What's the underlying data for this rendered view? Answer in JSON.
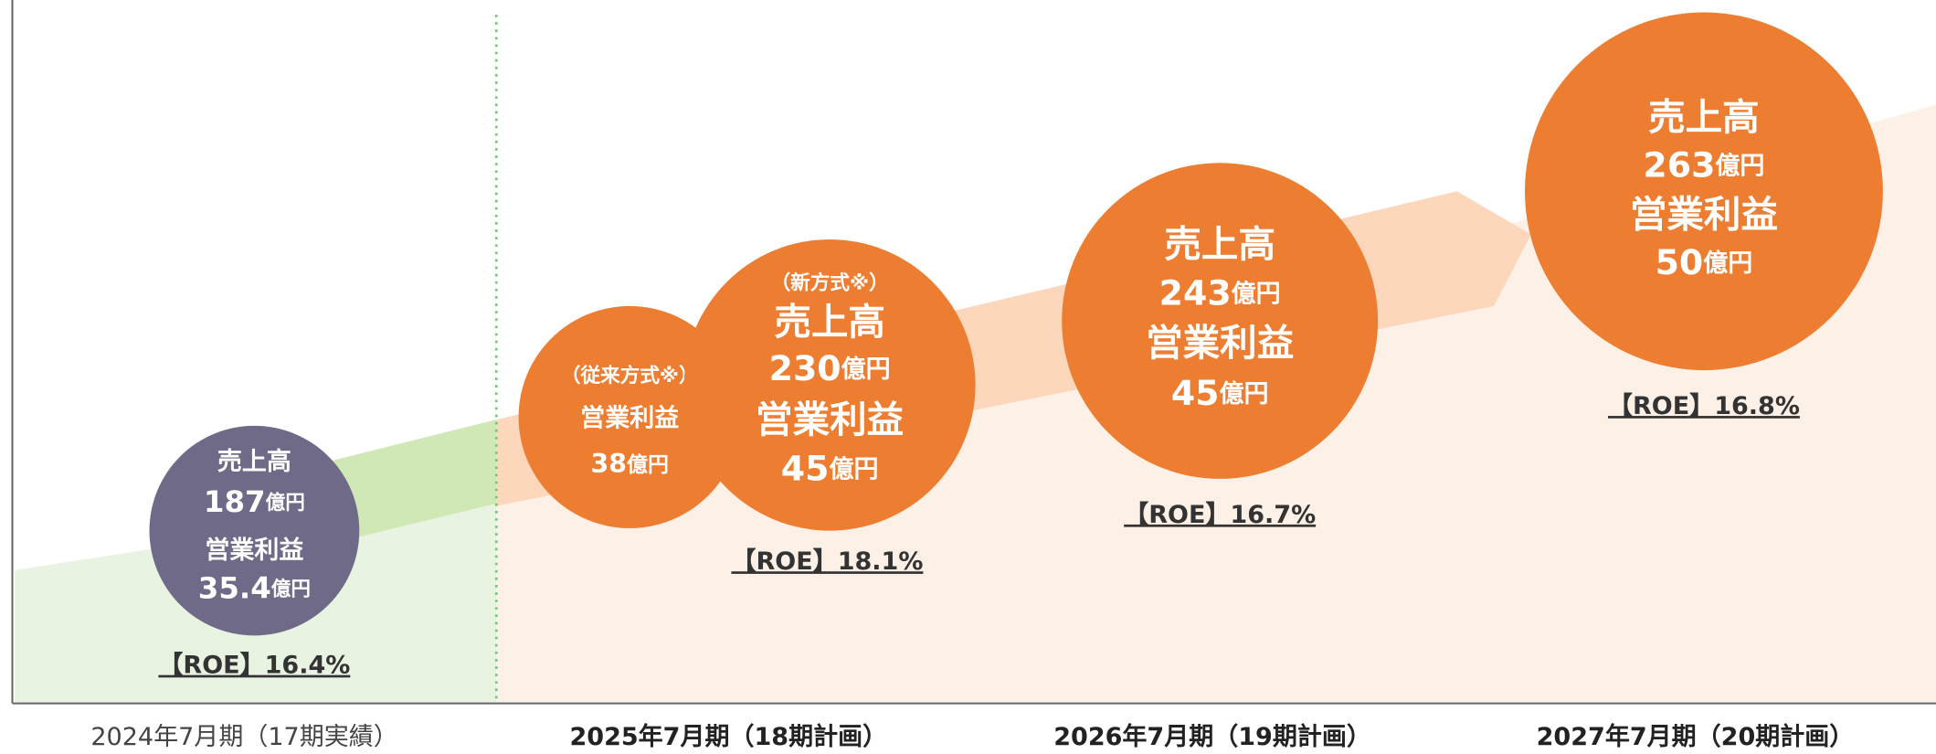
{
  "periods": [
    {
      "label": "2024年7月期（17期実績）",
      "roe": "【ROE】16.4%",
      "circles": [
        {
          "items": [
            {
              "heading": "売上高",
              "value": "187",
              "unit": "億円"
            },
            {
              "heading": "営業利益",
              "value": "35.4",
              "unit": "億円"
            }
          ]
        }
      ]
    },
    {
      "label": "2025年7月期（18期計画）",
      "roe": "【ROE】18.1%",
      "circles": [
        {
          "note": "（従来方式※）",
          "items": [
            {
              "heading": "営業利益",
              "value": "38",
              "unit": "億円"
            }
          ]
        },
        {
          "note": "（新方式※）",
          "items": [
            {
              "heading": "売上高",
              "value": "230",
              "unit": "億円"
            },
            {
              "heading": "営業利益",
              "value": "45",
              "unit": "億円"
            }
          ]
        }
      ]
    },
    {
      "label": "2026年7月期（19期計画）",
      "roe": "【ROE】16.7%",
      "circles": [
        {
          "items": [
            {
              "heading": "売上高",
              "value": "243",
              "unit": "億円"
            },
            {
              "heading": "営業利益",
              "value": "45",
              "unit": "億円"
            }
          ]
        }
      ]
    },
    {
      "label": "2027年7月期（20期計画）",
      "roe": "【ROE】16.8%",
      "circles": [
        {
          "items": [
            {
              "heading": "売上高",
              "value": "263",
              "unit": "億円"
            },
            {
              "heading": "営業利益",
              "value": "50",
              "unit": "億円"
            }
          ]
        }
      ]
    }
  ]
}
